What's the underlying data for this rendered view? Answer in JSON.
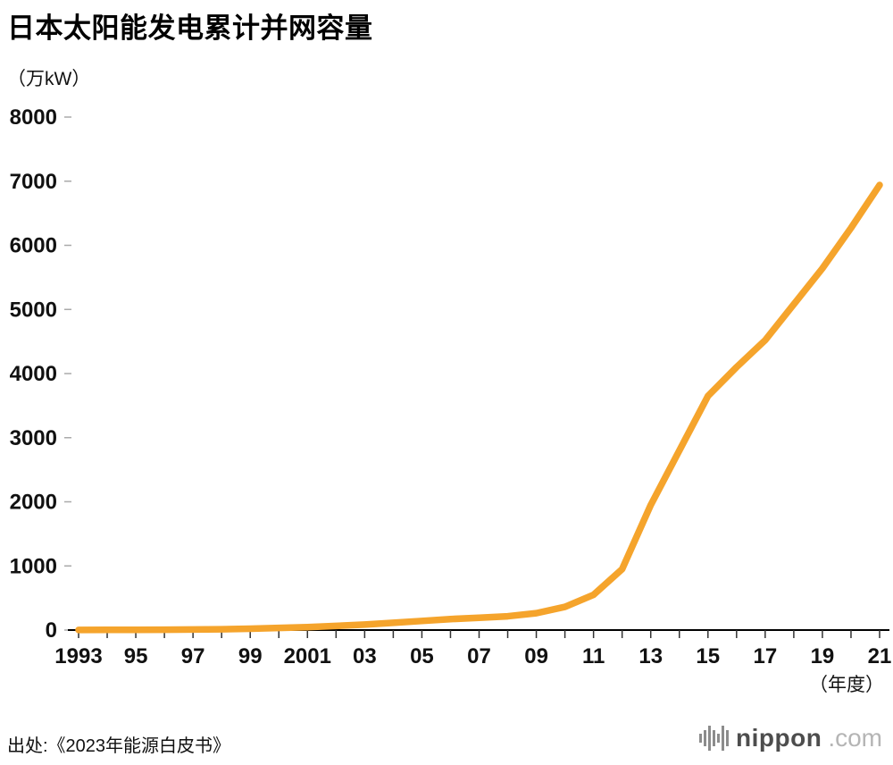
{
  "title": "日本太阳能发电累计并网容量",
  "y_unit": "（万kW）",
  "x_unit": "（年度）",
  "source": "出处:《2023年能源白皮书》",
  "logo": {
    "name": "nippon",
    "suffix": ".com"
  },
  "chart_data": {
    "type": "line",
    "title": "日本太阳能发电累计并网容量",
    "ylabel": "万kW",
    "xlabel": "年度",
    "ylim": [
      0,
      8000
    ],
    "y_ticks": [
      0,
      1000,
      2000,
      3000,
      4000,
      5000,
      6000,
      7000,
      8000
    ],
    "x_tick_labels": [
      "1993",
      "95",
      "97",
      "99",
      "2001",
      "03",
      "05",
      "07",
      "09",
      "11",
      "13",
      "15",
      "17",
      "19",
      "21"
    ],
    "grid": false,
    "legend": false,
    "line_color": "#F5A42C",
    "x": [
      1993,
      1994,
      1995,
      1996,
      1997,
      1998,
      1999,
      2000,
      2001,
      2002,
      2003,
      2004,
      2005,
      2006,
      2007,
      2008,
      2009,
      2010,
      2011,
      2012,
      2013,
      2014,
      2015,
      2016,
      2017,
      2018,
      2019,
      2020,
      2021
    ],
    "values": [
      2,
      3,
      4,
      6,
      9,
      13,
      21,
      33,
      45,
      64,
      86,
      113,
      142,
      171,
      192,
      215,
      263,
      361,
      550,
      950,
      1950,
      2800,
      3650,
      4100,
      4520,
      5080,
      5640,
      6270,
      6940
    ]
  }
}
